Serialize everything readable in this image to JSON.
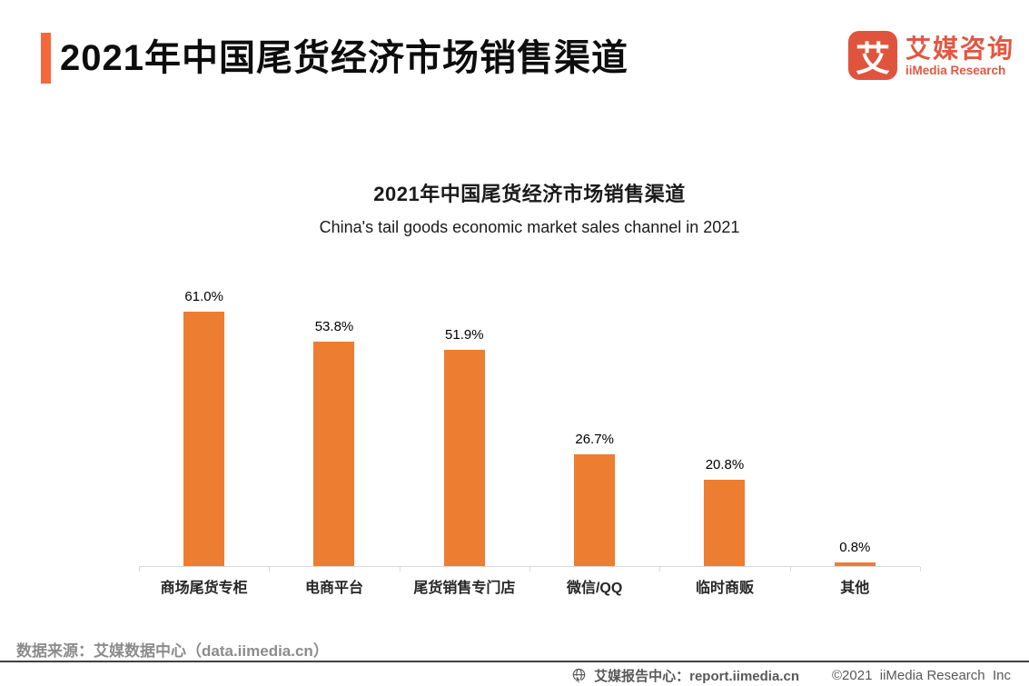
{
  "header": {
    "title": "2021年中国尾货经济市场销售渠道"
  },
  "logo": {
    "icon_char": "艾",
    "name_cn": "艾媒咨询",
    "name_en": "iiMedia Research"
  },
  "chart_data": {
    "type": "bar",
    "title": "2021年中国尾货经济市场销售渠道",
    "subtitle": "China's tail goods economic market sales channel in 2021",
    "categories": [
      "商场尾货专柜",
      "电商平台",
      "尾货销售专门店",
      "微信/QQ",
      "临时商贩",
      "其他"
    ],
    "values": [
      61.0,
      53.8,
      51.9,
      26.7,
      20.8,
      0.8
    ],
    "value_labels": [
      "61.0%",
      "53.8%",
      "51.9%",
      "26.7%",
      "20.8%",
      "0.8%"
    ],
    "bar_color": "#ED7D31",
    "xlabel": "",
    "ylabel": "",
    "ylim": [
      0,
      70.4
    ],
    "grid": false,
    "legend": false,
    "axis_color": "#D9D9D9"
  },
  "footer": {
    "source": "数据来源：艾媒数据中心（data.iimedia.cn）",
    "report_center": "艾媒报告中心：report.iimedia.cn",
    "copyright": "©2021  iiMedia Research  Inc"
  },
  "colors": {
    "accent": "#F5683C",
    "logo": "#E0543E",
    "bar": "#ED7D31"
  }
}
